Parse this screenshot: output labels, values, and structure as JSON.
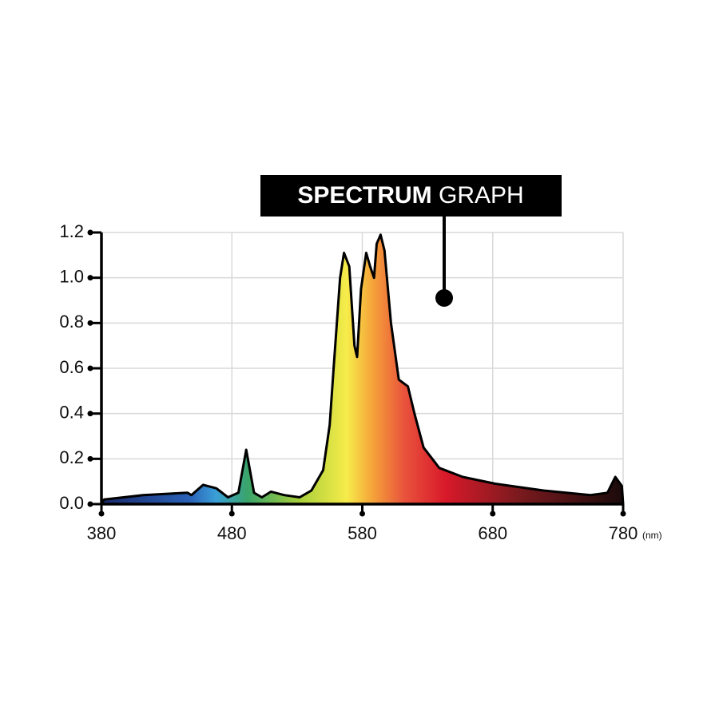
{
  "chart_data": {
    "type": "area",
    "title": [
      "SPECTRUM",
      "GRAPH"
    ],
    "xlabel": "(nm)",
    "x": [
      380,
      382,
      412,
      446,
      449,
      458,
      468,
      477,
      485,
      491,
      497,
      503,
      510,
      520,
      532,
      541,
      550,
      555,
      558,
      563,
      566,
      570,
      574,
      576,
      579,
      583,
      586,
      589,
      591,
      594,
      597,
      602,
      608,
      615,
      620,
      627,
      639,
      657,
      682,
      719,
      755,
      768,
      774,
      779,
      780
    ],
    "values": [
      0,
      0.02,
      0.04,
      0.05,
      0.04,
      0.085,
      0.07,
      0.03,
      0.05,
      0.24,
      0.05,
      0.03,
      0.055,
      0.04,
      0.03,
      0.06,
      0.15,
      0.35,
      0.6,
      1.0,
      1.11,
      1.05,
      0.7,
      0.65,
      0.95,
      1.11,
      1.05,
      1.0,
      1.15,
      1.19,
      1.12,
      0.8,
      0.55,
      0.52,
      0.4,
      0.25,
      0.16,
      0.12,
      0.09,
      0.06,
      0.04,
      0.05,
      0.12,
      0.08,
      0
    ],
    "xlim": [
      380,
      780
    ],
    "xticks": [
      380,
      480,
      580,
      680,
      780
    ],
    "ylim": [
      0,
      1.2
    ],
    "yticks": [
      {
        "value": 0,
        "label": "0.0"
      },
      0.2,
      0.4,
      0.6,
      0.8,
      {
        "value": 1,
        "label": "1.0"
      },
      1.2
    ],
    "grid": true,
    "grid_color": "#d9d9d9",
    "line_color": "#000000"
  }
}
